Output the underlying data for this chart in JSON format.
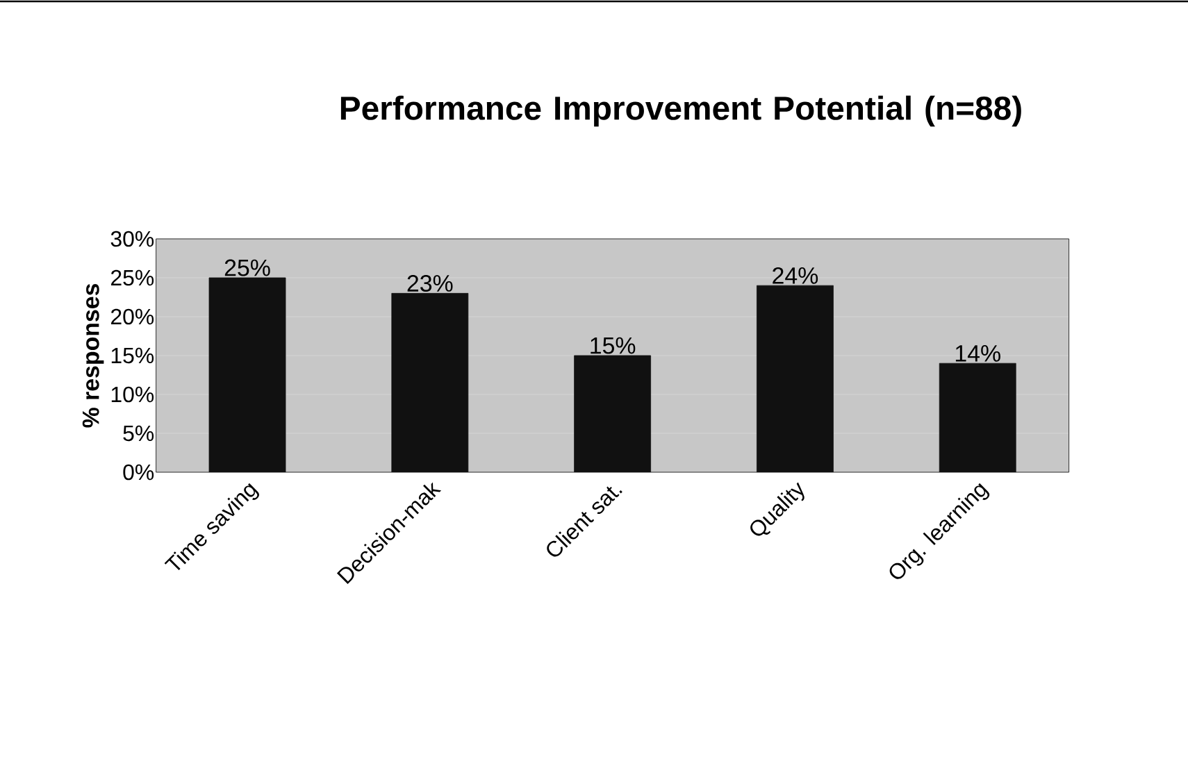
{
  "chart_data": {
    "type": "bar",
    "title": "Performance Improvement Potential (n=88)",
    "ylabel": "% responses",
    "categories": [
      "Time saving",
      "Decision-mak",
      "Client sat.",
      "Quality",
      "Org. learning"
    ],
    "values": [
      25,
      23,
      15,
      24,
      14
    ],
    "value_labels": [
      "25%",
      "23%",
      "15%",
      "24%",
      "14%"
    ],
    "color": "#111111",
    "ylim": [
      0,
      30
    ],
    "yticks": [
      {
        "value": 0,
        "label": "0%"
      },
      {
        "value": 5,
        "label": "5%"
      },
      {
        "value": 10,
        "label": "10%"
      },
      {
        "value": 15,
        "label": "15%"
      },
      {
        "value": 20,
        "label": "20%"
      },
      {
        "value": 25,
        "label": "25%"
      },
      {
        "value": 30,
        "label": "30%"
      }
    ],
    "grid": "y"
  }
}
